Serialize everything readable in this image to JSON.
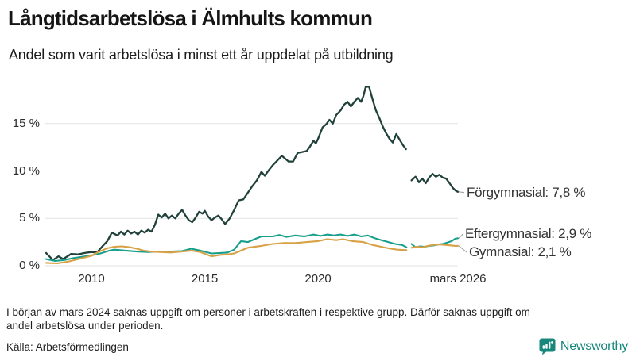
{
  "header": {
    "title": "Långtidsarbetslösa i Älmhults kommun",
    "subtitle": "Andel som varit arbetslösa i minst ett år uppdelat på utbildning"
  },
  "chart_data": {
    "type": "line",
    "title": "Långtidsarbetslösa i Älmhults kommun",
    "subtitle": "Andel som varit arbetslösa i minst ett år uppdelat på utbildning",
    "unit": "%",
    "grid": "horizontal-only",
    "colors": {
      "forgymnasial": "#21413b",
      "eftergymnasial": "#189f8b",
      "gymnasial": "#d8a146",
      "grid": "#e3e3e3",
      "connector": "#999999"
    },
    "x_axis": {
      "range": [
        2008,
        2026.17
      ],
      "ticks": [
        {
          "value": 2010,
          "label": "2010"
        },
        {
          "value": 2015,
          "label": "2015"
        },
        {
          "value": 2020,
          "label": "2020"
        },
        {
          "value": 2026.17,
          "label": "mars 2026"
        }
      ]
    },
    "y_axis": {
      "range": [
        0,
        19.5
      ],
      "ticks": [
        {
          "value": 0,
          "label": "0 %"
        },
        {
          "value": 5,
          "label": "5 %"
        },
        {
          "value": 10,
          "label": "10 %"
        },
        {
          "value": 15,
          "label": "15 %"
        }
      ]
    },
    "data_gap": {
      "from": 2023.9,
      "to": 2024.12,
      "reason": "saknas uppgift mars 2024"
    },
    "series": [
      {
        "name": "Förgymnasial",
        "end_label": "Förgymnasial: 7,8 %",
        "end_value_text": "7,8 %",
        "color": "#21413b",
        "segments": [
          [
            [
              2008.0,
              1.35
            ],
            [
              2008.3,
              0.6
            ],
            [
              2008.55,
              1.0
            ],
            [
              2008.75,
              0.7
            ],
            [
              2009.1,
              1.25
            ],
            [
              2009.4,
              1.2
            ],
            [
              2009.7,
              1.35
            ],
            [
              2010.0,
              1.45
            ],
            [
              2010.25,
              1.4
            ],
            [
              2010.5,
              2.1
            ],
            [
              2010.7,
              2.6
            ],
            [
              2010.9,
              3.5
            ],
            [
              2011.15,
              3.2
            ],
            [
              2011.3,
              3.6
            ],
            [
              2011.45,
              3.3
            ],
            [
              2011.6,
              3.7
            ],
            [
              2011.75,
              3.4
            ],
            [
              2011.9,
              3.6
            ],
            [
              2012.05,
              3.3
            ],
            [
              2012.2,
              3.7
            ],
            [
              2012.35,
              3.5
            ],
            [
              2012.5,
              3.8
            ],
            [
              2012.65,
              3.6
            ],
            [
              2012.8,
              4.3
            ],
            [
              2012.95,
              5.4
            ],
            [
              2013.1,
              5.1
            ],
            [
              2013.25,
              5.5
            ],
            [
              2013.4,
              5.0
            ],
            [
              2013.55,
              5.3
            ],
            [
              2013.7,
              5.0
            ],
            [
              2013.85,
              5.5
            ],
            [
              2014.0,
              5.9
            ],
            [
              2014.15,
              5.3
            ],
            [
              2014.3,
              4.8
            ],
            [
              2014.45,
              4.6
            ],
            [
              2014.6,
              5.1
            ],
            [
              2014.75,
              5.7
            ],
            [
              2014.9,
              5.5
            ],
            [
              2015.0,
              5.8
            ],
            [
              2015.15,
              5.2
            ],
            [
              2015.3,
              4.8
            ],
            [
              2015.45,
              5.1
            ],
            [
              2015.6,
              5.3
            ],
            [
              2015.75,
              4.9
            ],
            [
              2015.9,
              4.4
            ],
            [
              2016.1,
              5.0
            ],
            [
              2016.3,
              5.9
            ],
            [
              2016.5,
              6.9
            ],
            [
              2016.7,
              7.0
            ],
            [
              2016.9,
              7.7
            ],
            [
              2017.1,
              8.4
            ],
            [
              2017.3,
              9.0
            ],
            [
              2017.5,
              9.9
            ],
            [
              2017.65,
              9.5
            ],
            [
              2017.8,
              10.0
            ],
            [
              2018.0,
              10.6
            ],
            [
              2018.2,
              11.1
            ],
            [
              2018.4,
              11.6
            ],
            [
              2018.55,
              11.3
            ],
            [
              2018.7,
              11.0
            ],
            [
              2018.9,
              11.0
            ],
            [
              2019.1,
              11.9
            ],
            [
              2019.3,
              12.0
            ],
            [
              2019.5,
              12.1
            ],
            [
              2019.65,
              12.6
            ],
            [
              2019.8,
              13.2
            ],
            [
              2019.9,
              12.9
            ],
            [
              2020.0,
              13.4
            ],
            [
              2020.2,
              14.6
            ],
            [
              2020.35,
              14.9
            ],
            [
              2020.5,
              15.4
            ],
            [
              2020.65,
              15.0
            ],
            [
              2020.8,
              15.9
            ],
            [
              2021.0,
              16.4
            ],
            [
              2021.15,
              17.0
            ],
            [
              2021.3,
              17.3
            ],
            [
              2021.45,
              16.8
            ],
            [
              2021.6,
              17.3
            ],
            [
              2021.75,
              17.7
            ],
            [
              2021.9,
              17.3
            ],
            [
              2022.0,
              17.9
            ],
            [
              2022.1,
              18.85
            ],
            [
              2022.25,
              18.9
            ],
            [
              2022.4,
              17.6
            ],
            [
              2022.55,
              16.4
            ],
            [
              2022.7,
              15.6
            ],
            [
              2022.85,
              14.7
            ],
            [
              2023.0,
              14.0
            ],
            [
              2023.15,
              13.4
            ],
            [
              2023.3,
              13.0
            ],
            [
              2023.45,
              13.9
            ],
            [
              2023.6,
              13.3
            ],
            [
              2023.75,
              12.7
            ],
            [
              2023.88,
              12.3
            ]
          ],
          [
            [
              2024.12,
              9.0
            ],
            [
              2024.3,
              9.4
            ],
            [
              2024.45,
              8.8
            ],
            [
              2024.6,
              9.2
            ],
            [
              2024.75,
              8.7
            ],
            [
              2024.9,
              9.3
            ],
            [
              2025.05,
              9.7
            ],
            [
              2025.2,
              9.4
            ],
            [
              2025.35,
              9.6
            ],
            [
              2025.5,
              9.3
            ],
            [
              2025.65,
              9.2
            ],
            [
              2025.8,
              8.7
            ],
            [
              2025.95,
              8.2
            ],
            [
              2026.08,
              7.9
            ],
            [
              2026.17,
              7.8
            ]
          ]
        ]
      },
      {
        "name": "Eftergymnasial",
        "end_label": "Eftergymnasial: 2,9 %",
        "end_value_text": "2,9 %",
        "color": "#189f8b",
        "segments": [
          [
            [
              2008.0,
              0.7
            ],
            [
              2008.4,
              0.5
            ],
            [
              2008.8,
              0.6
            ],
            [
              2009.2,
              0.8
            ],
            [
              2009.6,
              0.95
            ],
            [
              2010.0,
              1.1
            ],
            [
              2010.4,
              1.3
            ],
            [
              2010.8,
              1.6
            ],
            [
              2011.0,
              1.7
            ],
            [
              2011.5,
              1.6
            ],
            [
              2012.0,
              1.5
            ],
            [
              2012.5,
              1.45
            ],
            [
              2013.0,
              1.5
            ],
            [
              2013.5,
              1.5
            ],
            [
              2014.0,
              1.55
            ],
            [
              2014.4,
              1.8
            ],
            [
              2014.8,
              1.6
            ],
            [
              2015.3,
              1.3
            ],
            [
              2015.7,
              1.35
            ],
            [
              2016.0,
              1.4
            ],
            [
              2016.3,
              1.7
            ],
            [
              2016.6,
              2.6
            ],
            [
              2016.9,
              2.5
            ],
            [
              2017.2,
              2.8
            ],
            [
              2017.5,
              3.1
            ],
            [
              2018.0,
              3.1
            ],
            [
              2018.3,
              3.25
            ],
            [
              2018.6,
              3.05
            ],
            [
              2019.0,
              3.2
            ],
            [
              2019.4,
              3.1
            ],
            [
              2019.8,
              3.3
            ],
            [
              2020.1,
              3.15
            ],
            [
              2020.4,
              3.3
            ],
            [
              2020.7,
              3.2
            ],
            [
              2021.0,
              3.3
            ],
            [
              2021.3,
              3.15
            ],
            [
              2021.6,
              3.3
            ],
            [
              2021.9,
              3.1
            ],
            [
              2022.2,
              3.2
            ],
            [
              2022.5,
              2.9
            ],
            [
              2022.8,
              2.7
            ],
            [
              2023.1,
              2.5
            ],
            [
              2023.4,
              2.3
            ],
            [
              2023.7,
              2.2
            ],
            [
              2023.9,
              1.95
            ]
          ],
          [
            [
              2024.12,
              2.3
            ],
            [
              2024.3,
              1.95
            ],
            [
              2024.5,
              2.05
            ],
            [
              2024.7,
              2.0
            ],
            [
              2024.9,
              2.1
            ],
            [
              2025.1,
              2.15
            ],
            [
              2025.3,
              2.25
            ],
            [
              2025.5,
              2.3
            ],
            [
              2025.7,
              2.45
            ],
            [
              2025.9,
              2.6
            ],
            [
              2026.05,
              2.85
            ],
            [
              2026.17,
              2.9
            ]
          ]
        ]
      },
      {
        "name": "Gymnasial",
        "end_label": "Gymnasial: 2,1 %",
        "end_value_text": "2,1 %",
        "color": "#d8a146",
        "segments": [
          [
            [
              2008.0,
              0.3
            ],
            [
              2008.5,
              0.25
            ],
            [
              2009.0,
              0.45
            ],
            [
              2009.5,
              0.75
            ],
            [
              2010.0,
              1.05
            ],
            [
              2010.35,
              1.5
            ],
            [
              2010.7,
              1.85
            ],
            [
              2011.0,
              2.0
            ],
            [
              2011.35,
              2.05
            ],
            [
              2011.7,
              1.95
            ],
            [
              2012.0,
              1.8
            ],
            [
              2012.3,
              1.6
            ],
            [
              2012.6,
              1.5
            ],
            [
              2013.0,
              1.45
            ],
            [
              2013.5,
              1.4
            ],
            [
              2014.0,
              1.5
            ],
            [
              2014.4,
              1.6
            ],
            [
              2014.8,
              1.45
            ],
            [
              2015.3,
              1.0
            ],
            [
              2015.7,
              1.15
            ],
            [
              2016.0,
              1.2
            ],
            [
              2016.3,
              1.3
            ],
            [
              2016.6,
              1.6
            ],
            [
              2016.9,
              1.9
            ],
            [
              2017.2,
              2.0
            ],
            [
              2017.5,
              2.1
            ],
            [
              2018.0,
              2.3
            ],
            [
              2018.5,
              2.4
            ],
            [
              2019.0,
              2.4
            ],
            [
              2019.5,
              2.5
            ],
            [
              2020.0,
              2.6
            ],
            [
              2020.4,
              2.8
            ],
            [
              2020.8,
              2.7
            ],
            [
              2021.1,
              2.8
            ],
            [
              2021.5,
              2.6
            ],
            [
              2022.0,
              2.5
            ],
            [
              2022.4,
              2.2
            ],
            [
              2022.8,
              2.0
            ],
            [
              2023.2,
              1.8
            ],
            [
              2023.5,
              1.7
            ],
            [
              2023.9,
              1.65
            ]
          ],
          [
            [
              2024.12,
              1.9
            ],
            [
              2024.35,
              2.0
            ],
            [
              2024.6,
              1.95
            ],
            [
              2024.85,
              2.1
            ],
            [
              2025.1,
              2.2
            ],
            [
              2025.35,
              2.25
            ],
            [
              2025.6,
              2.2
            ],
            [
              2025.85,
              2.15
            ],
            [
              2026.05,
              2.1
            ],
            [
              2026.17,
              2.1
            ]
          ]
        ]
      }
    ]
  },
  "footer": {
    "note_lines": [
      "I början av mars 2024 saknas uppgift om personer i arbetskraften i respektive grupp. Därför saknas uppgift om",
      "andel arbetslösa under perioden."
    ],
    "source": "Källa: Arbetsförmedlingen",
    "brand": "Newsworthy",
    "brand_color": "#17887b"
  }
}
